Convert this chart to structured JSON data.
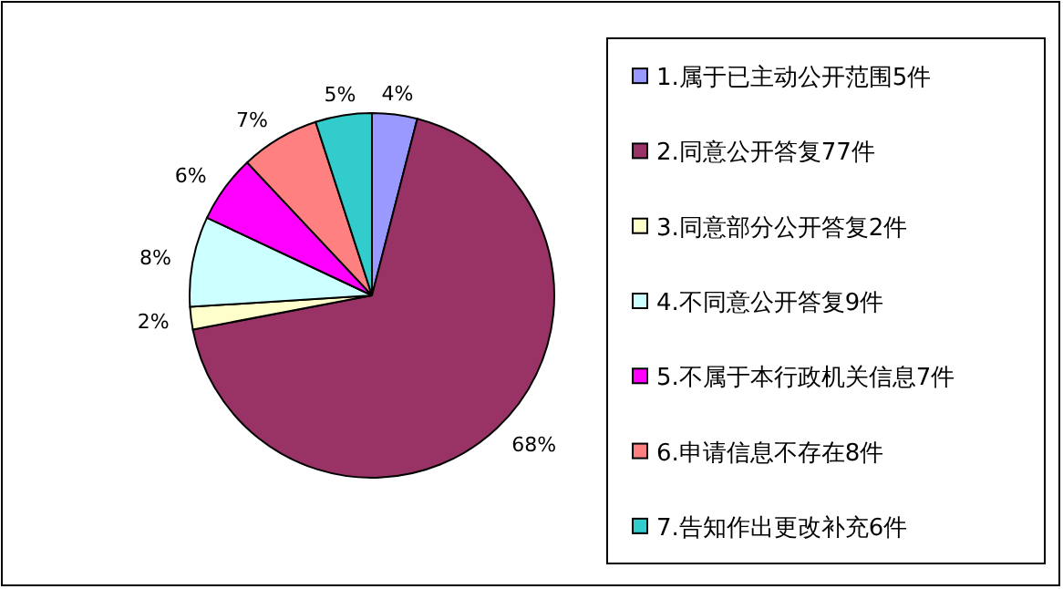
{
  "chart_data": {
    "type": "pie",
    "categories": [
      "1.属于已主动公开范围5件",
      "2.同意公开答复77件",
      "3.同意部分公开答复2件",
      "4.不同意公开答复9件",
      "5.不属于本行政机关信息7件",
      "6.申请信息不存在8件",
      "7.告知作出更改补充6件"
    ],
    "values": [
      4,
      68,
      2,
      8,
      6,
      7,
      5
    ],
    "value_labels": [
      "4%",
      "68%",
      "2%",
      "8%",
      "6%",
      "7%",
      "5%"
    ],
    "colors": [
      "#9999ff",
      "#993366",
      "#ffffcc",
      "#ccffff",
      "#ff00ff",
      "#ff8080",
      "#33cccc"
    ],
    "legend": "right"
  }
}
